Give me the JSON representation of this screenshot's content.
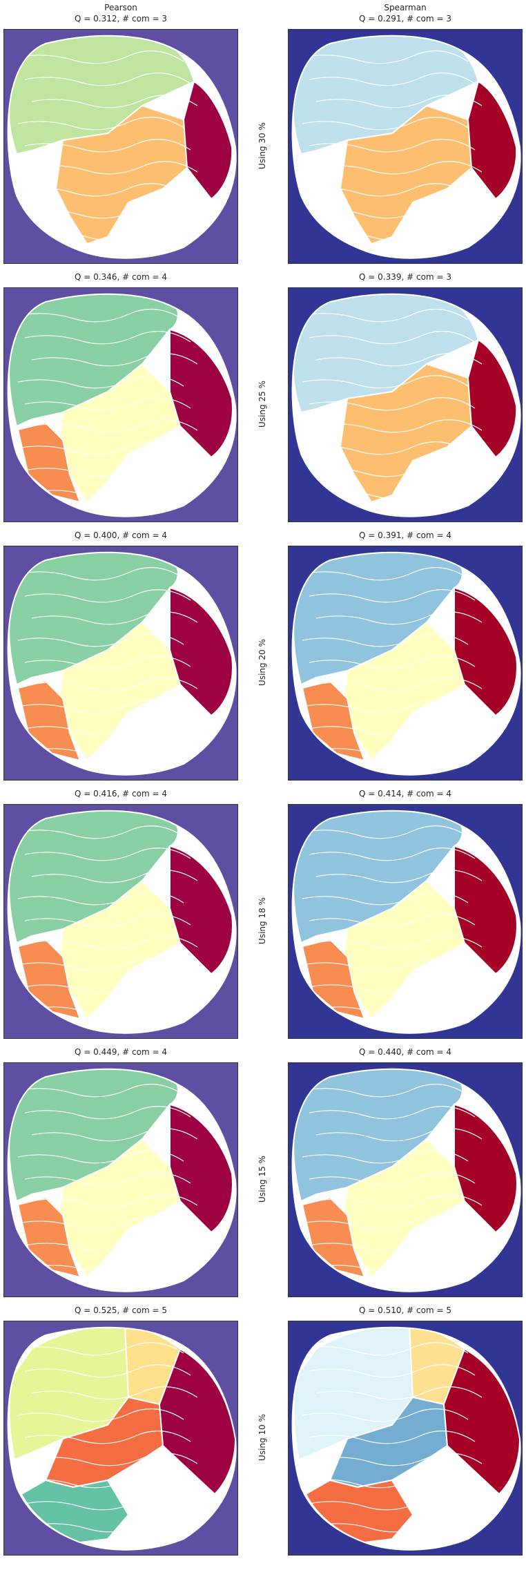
{
  "columns": [
    "Pearson",
    "Spearman"
  ],
  "rows": [
    {
      "label": "Using 30 %",
      "pearson": {
        "q_label": "Q = 0.312,  # com = 3",
        "bg": "#5e4fa2",
        "regions": [
          "#bfe5a0",
          "#fdbf6f",
          "#9e0142"
        ]
      },
      "spearman": {
        "q_label": "Q = 0.291,  # com = 3",
        "bg": "#313695",
        "regions": [
          "#bde0ec",
          "#fdbf6f",
          "#a50026"
        ]
      }
    },
    {
      "label": "Using 25 %",
      "pearson": {
        "q_label": "Q = 0.346,  # com = 4",
        "bg": "#5e4fa2",
        "regions": [
          "#88d0a4",
          "#ffffbf",
          "#f88d52",
          "#9e0142"
        ]
      },
      "spearman": {
        "q_label": "Q = 0.339,  # com = 3",
        "bg": "#313695",
        "regions": [
          "#bde0ec",
          "#fdbf6f",
          "#a50026"
        ]
      }
    },
    {
      "label": "Using 20 %",
      "pearson": {
        "q_label": "Q = 0.400,  # com = 4",
        "bg": "#5e4fa2",
        "regions": [
          "#88d0a4",
          "#ffffbf",
          "#f88d52",
          "#9e0142"
        ]
      },
      "spearman": {
        "q_label": "Q = 0.391,  # com = 4",
        "bg": "#313695",
        "regions": [
          "#90c3dd",
          "#ffffbf",
          "#f88d52",
          "#a50026"
        ]
      }
    },
    {
      "label": "Using 18 %",
      "pearson": {
        "q_label": "Q = 0.416,  # com = 4",
        "bg": "#5e4fa2",
        "regions": [
          "#88d0a4",
          "#ffffbf",
          "#f88d52",
          "#9e0142"
        ]
      },
      "spearman": {
        "q_label": "Q = 0.414,  # com = 4",
        "bg": "#313695",
        "regions": [
          "#90c3dd",
          "#ffffbf",
          "#f88d52",
          "#a50026"
        ]
      }
    },
    {
      "label": "Using 15 %",
      "pearson": {
        "q_label": "Q = 0.449,  # com = 4",
        "bg": "#5e4fa2",
        "regions": [
          "#88d0a4",
          "#ffffbf",
          "#f88d52",
          "#9e0142"
        ]
      },
      "spearman": {
        "q_label": "Q = 0.440,  # com = 4",
        "bg": "#313695",
        "regions": [
          "#90c3dd",
          "#ffffbf",
          "#f88d52",
          "#a50026"
        ]
      }
    },
    {
      "label": "Using 10 %",
      "pearson": {
        "q_label": "Q = 0.525,  # com = 5",
        "bg": "#5e4fa2",
        "regions": [
          "#e6f598",
          "#fee08b",
          "#f46d43",
          "#66c2a5",
          "#9e0142"
        ]
      },
      "spearman": {
        "q_label": "Q = 0.510,  # com = 5",
        "bg": "#313695",
        "regions": [
          "#e0f3f8",
          "#fee090",
          "#74add1",
          "#f46d43",
          "#a50026"
        ]
      }
    }
  ]
}
